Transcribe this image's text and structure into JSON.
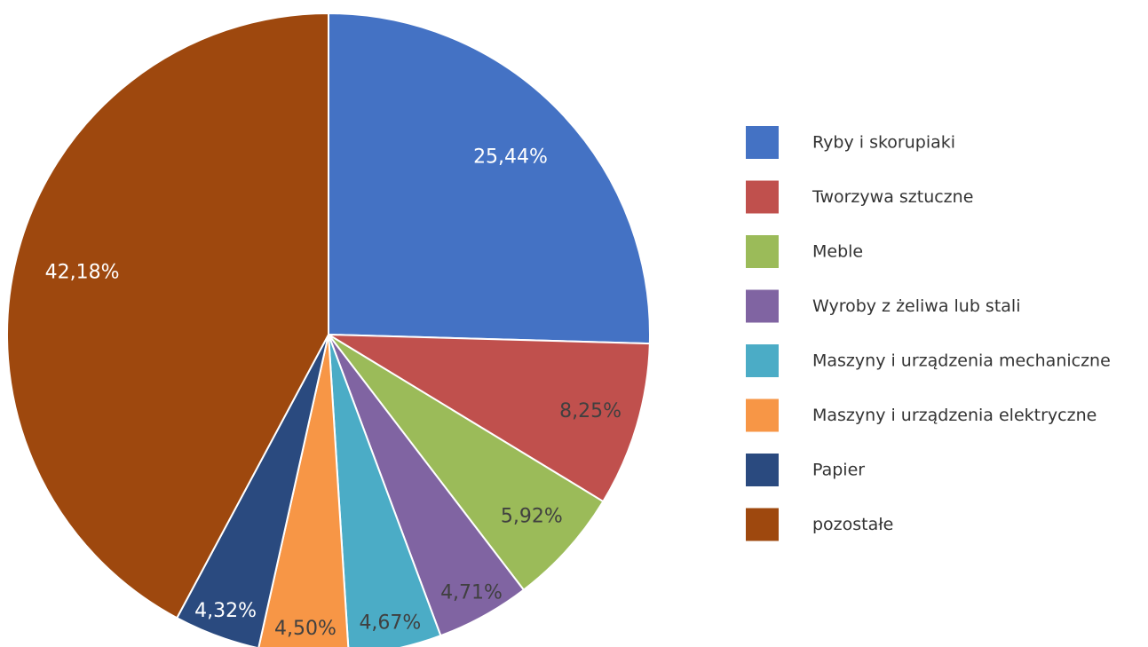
{
  "chart_data": {
    "type": "pie",
    "categories": [
      "Ryby i skorupiaki",
      "Tworzywa sztuczne",
      "Meble",
      "Wyroby z żeliwa lub stali",
      "Maszyny i urządzenia mechaniczne",
      "Maszyny i urządzenia elektryczne",
      "Papier",
      "pozostałe"
    ],
    "values": [
      25.44,
      8.25,
      5.92,
      4.71,
      4.67,
      4.5,
      4.32,
      42.18
    ],
    "value_labels": [
      "25,44%",
      "8,25%",
      "5,92%",
      "4,71%",
      "4,67%",
      "4,50%",
      "4,32%",
      "42,18%"
    ],
    "colors": [
      "#4472c4",
      "#c0504d",
      "#9bbb59",
      "#8064a2",
      "#4bacc6",
      "#f79646",
      "#2a4a7f",
      "#9e480e"
    ],
    "legend": "right"
  }
}
